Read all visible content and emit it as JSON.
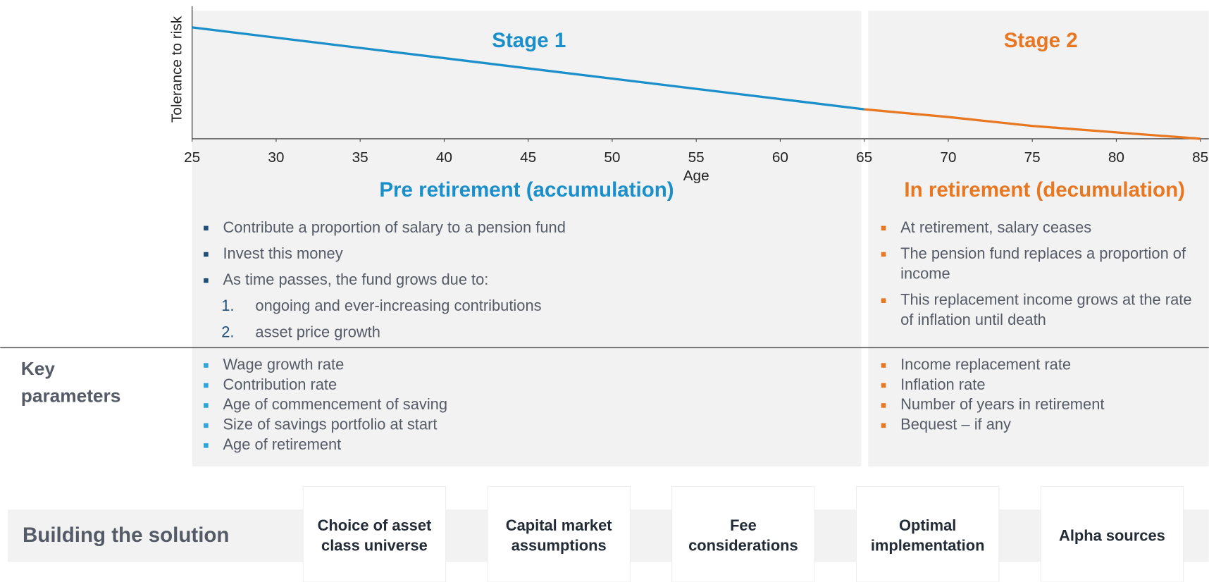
{
  "chart_data": {
    "type": "line",
    "xlabel": "Age",
    "ylabel": "Tolerance to risk",
    "xlim": [
      25,
      85
    ],
    "xticks": [
      25,
      30,
      35,
      40,
      45,
      50,
      55,
      60,
      65,
      70,
      75,
      80,
      85
    ],
    "ylim": [
      0,
      100
    ],
    "series": [
      {
        "name": "Stage 1",
        "color": "#1a8fc9",
        "x": [
          25,
          65
        ],
        "values": [
          87,
          23
        ]
      },
      {
        "name": "Stage 2",
        "color": "#e87722",
        "x": [
          65,
          70,
          75,
          80,
          85
        ],
        "values": [
          23,
          17,
          10,
          5,
          0
        ]
      }
    ]
  },
  "stages": [
    {
      "heading": "Pre retirement (accumulation)",
      "bullets": [
        "Contribute a proportion of salary to a pension fund",
        "Invest this money",
        "As time passes, the fund grows due to:"
      ],
      "sublist": [
        {
          "marker": "1.",
          "text": "ongoing and ever-increasing contributions"
        },
        {
          "marker": "2.",
          "text": "asset price growth"
        }
      ],
      "parameters": [
        "Wage growth rate",
        "Contribution rate",
        "Age of commencement of saving",
        "Size of savings portfolio at start",
        "Age of retirement"
      ]
    },
    {
      "heading": "In retirement (decumulation)",
      "bullets": [
        "At retirement, salary ceases",
        "The pension fund replaces a proportion of income",
        "This replacement income grows at the rate of inflation until death"
      ],
      "sublist": [],
      "parameters": [
        "Income replacement rate",
        "Inflation rate",
        "Number of years in retirement",
        "Bequest – if any"
      ]
    }
  ],
  "key_parameters": "Key parameters",
  "building": {
    "title": "Building the solution",
    "boxes": [
      "Choice of asset class universe",
      "Capital market assumptions",
      "Fee considerations",
      "Optimal implementation",
      "Alpha sources"
    ]
  }
}
